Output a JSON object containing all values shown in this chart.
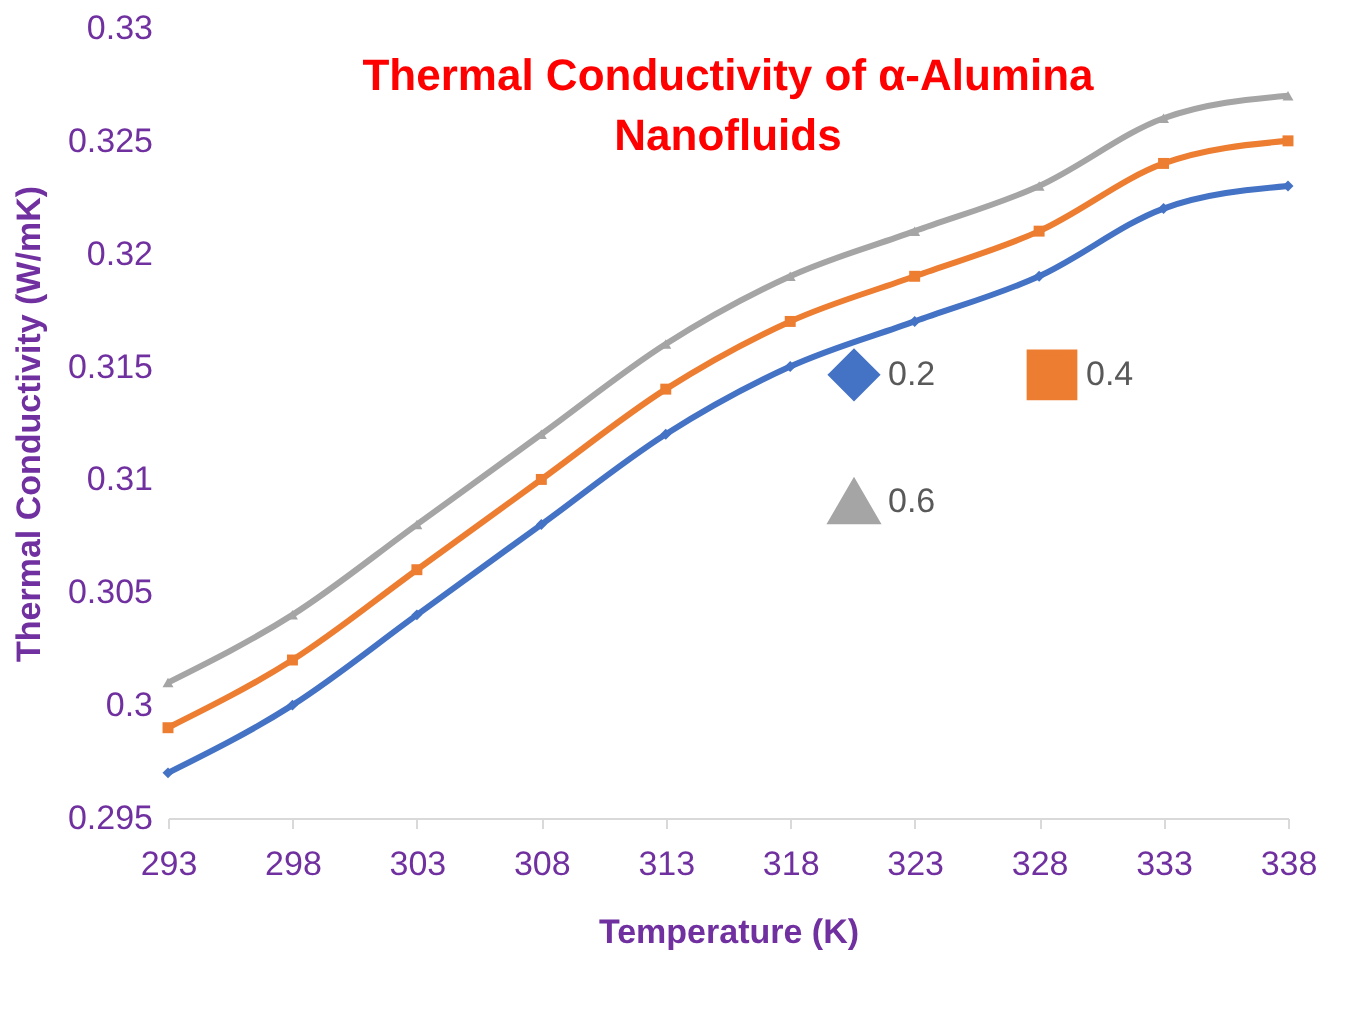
{
  "chart_data": {
    "type": "line",
    "title": "Thermal Conductivity of α-Alumina Nanofluids",
    "xlabel": "Temperature (K)",
    "ylabel": "Thermal Conductivity (W/mK)",
    "categories": [
      "293",
      "298",
      "303",
      "308",
      "313",
      "318",
      "323",
      "328",
      "333",
      "338"
    ],
    "series": [
      {
        "name": "0.2",
        "color": "#4472c4",
        "marker": "diamond",
        "values": [
          0.297,
          0.3,
          0.304,
          0.308,
          0.312,
          0.315,
          0.317,
          0.319,
          0.322,
          0.323
        ]
      },
      {
        "name": "0.4",
        "color": "#ed7d31",
        "marker": "square",
        "values": [
          0.299,
          0.302,
          0.306,
          0.31,
          0.314,
          0.317,
          0.319,
          0.321,
          0.324,
          0.325
        ]
      },
      {
        "name": "0.6",
        "color": "#a5a5a5",
        "marker": "triangle",
        "values": [
          0.301,
          0.304,
          0.308,
          0.312,
          0.316,
          0.319,
          0.321,
          0.323,
          0.326,
          0.327
        ]
      }
    ],
    "ylim": [
      0.295,
      0.33
    ],
    "yticks": [
      0.295,
      0.3,
      0.305,
      0.31,
      0.315,
      0.32,
      0.325,
      0.33
    ],
    "grid": false,
    "legend": "right"
  }
}
